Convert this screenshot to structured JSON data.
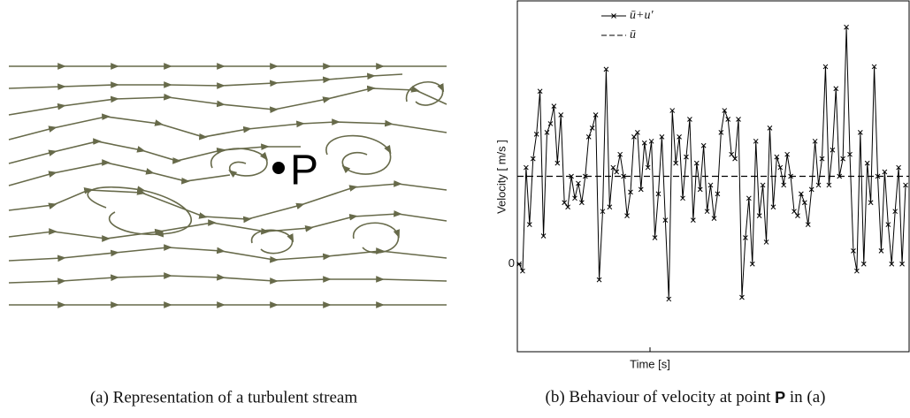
{
  "diagram": {
    "point_label": "P"
  },
  "captions": {
    "a": "(a) Representation of a turbulent stream",
    "b": {
      "prefix": "(b) Behaviour of velocity at point",
      "point": "P",
      "suffix": "in (a)"
    }
  },
  "chart_data": {
    "type": "line",
    "y_label": "Velocity [ m/s ]",
    "x_label": "Time [s]",
    "ylim": [
      -10,
      30
    ],
    "yticks": [
      0
    ],
    "series": [
      {
        "name": "ū+u'",
        "color": "#000000",
        "values": [
          0,
          -0.8,
          11,
          4.5,
          12,
          14.8,
          19.7,
          3.2,
          15,
          16,
          18,
          11.5,
          17,
          7,
          6.5,
          10,
          7.5,
          9.2,
          7,
          10,
          14.5,
          15.5,
          17,
          -1.8,
          6,
          22.2,
          6.5,
          11,
          10.5,
          12.5,
          10,
          5.5,
          8.2,
          14.5,
          15,
          8.5,
          13.8,
          11,
          14,
          3,
          8,
          14.5,
          5,
          -4,
          17.5,
          11.5,
          14.5,
          7.5,
          12.2,
          16.5,
          5,
          11.5,
          8.5,
          13.5,
          6,
          9,
          5.2,
          8,
          15,
          17.5,
          16.5,
          12.5,
          12,
          16.5,
          -3.8,
          3,
          7.5,
          0,
          14,
          5.5,
          9,
          2.5,
          15.5,
          6.5,
          12.2,
          11,
          9,
          12.5,
          10,
          6,
          5.5,
          8,
          7,
          4.5,
          8.5,
          14,
          9,
          12,
          22.5,
          9,
          13,
          20,
          10,
          12,
          27,
          12.5,
          1.5,
          -0.8,
          15,
          0,
          11.5,
          7,
          22.5,
          10,
          1.5,
          10.5,
          4.5,
          0,
          6,
          11,
          0,
          9
        ]
      }
    ],
    "mean_line": {
      "name": "ū",
      "value": 10,
      "color": "#000000"
    }
  }
}
